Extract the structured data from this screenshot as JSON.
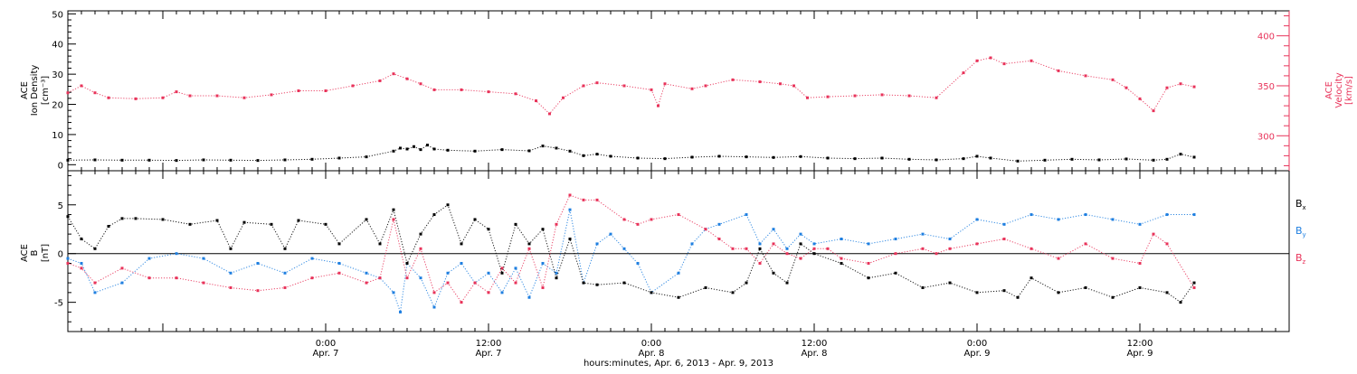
{
  "colors": {
    "axis": "#000000",
    "density": "#000000",
    "velocity": "#e8335a",
    "bx": "#000000",
    "by": "#1f7fe0",
    "bz": "#e8335a"
  },
  "time_axis": {
    "title": "hours:minutes, Apr.  6, 2013 - Apr.  9, 2013",
    "x_unit": "hours since 2013-04-06 00:00",
    "range": [
      5,
      95
    ],
    "ticks": [
      {
        "x": 24,
        "time": "0:00",
        "date": "Apr. 7"
      },
      {
        "x": 36,
        "time": "12:00",
        "date": "Apr. 7"
      },
      {
        "x": 48,
        "time": "0:00",
        "date": "Apr. 8"
      },
      {
        "x": 60,
        "time": "12:00",
        "date": "Apr. 8"
      },
      {
        "x": 72,
        "time": "0:00",
        "date": "Apr. 9"
      },
      {
        "x": 84,
        "time": "12:00",
        "date": "Apr. 9"
      }
    ]
  },
  "chart_data": [
    {
      "type": "scatter",
      "panel": "plasma",
      "left_axis": {
        "label_lines": [
          "ACE",
          "Ion Density",
          "[cm⁻³]"
        ],
        "ylim": [
          -2,
          51
        ],
        "ticks": [
          "0",
          "10",
          "20",
          "30",
          "40",
          "50"
        ]
      },
      "right_axis": {
        "label_lines": [
          "ACE",
          "Velocity",
          "[km/s]"
        ],
        "ylim": [
          265,
          425
        ],
        "ticks": [
          "300",
          "350",
          "400"
        ]
      },
      "series": [
        {
          "axis": "left",
          "x": [
            5,
            7,
            9,
            11,
            13,
            15,
            17,
            19,
            21,
            23,
            25,
            27,
            29,
            29.5,
            30,
            30.5,
            31,
            31.5,
            32,
            33,
            35,
            37,
            39,
            40,
            41,
            42,
            43,
            44,
            45,
            47,
            49,
            51,
            53,
            55,
            57,
            59,
            61,
            63,
            65,
            67,
            69,
            71,
            72,
            73,
            75,
            77,
            79,
            81,
            83,
            85,
            86,
            87,
            88
          ],
          "y": [
            1.5,
            1.6,
            1.5,
            1.5,
            1.4,
            1.6,
            1.5,
            1.4,
            1.6,
            1.8,
            2.2,
            2.6,
            4.5,
            5.5,
            5.2,
            6.0,
            5.0,
            6.5,
            5.2,
            4.8,
            4.5,
            5.0,
            4.6,
            6.2,
            5.5,
            4.5,
            3.0,
            3.5,
            2.8,
            2.2,
            2.0,
            2.5,
            2.8,
            2.6,
            2.4,
            2.7,
            2.2,
            2.0,
            2.2,
            1.8,
            1.6,
            2.0,
            2.8,
            2.2,
            1.2,
            1.5,
            1.8,
            1.6,
            1.9,
            1.5,
            1.8,
            3.5,
            2.5
          ]
        },
        {
          "axis": "right",
          "x": [
            5,
            6,
            7,
            8,
            10,
            12,
            13,
            14,
            16,
            18,
            20,
            22,
            24,
            26,
            28,
            29,
            30,
            31,
            32,
            34,
            36,
            38,
            39.5,
            40.5,
            41.5,
            43,
            44,
            46,
            48,
            48.5,
            49,
            51,
            52,
            54,
            56,
            57.5,
            58.5,
            59.5,
            61,
            63,
            65,
            67,
            69,
            71,
            72,
            73,
            74,
            76,
            78,
            80,
            82,
            83,
            84,
            85,
            86,
            87,
            88
          ],
          "y": [
            343,
            350,
            343,
            338,
            337,
            338,
            344,
            340,
            340,
            338,
            341,
            345,
            345,
            350,
            355,
            362,
            357,
            352,
            346,
            346,
            344,
            342,
            335,
            322,
            338,
            350,
            353,
            350,
            346,
            330,
            352,
            347,
            350,
            356,
            354,
            352,
            350,
            338,
            339,
            340,
            341,
            340,
            338,
            363,
            375,
            378,
            372,
            375,
            365,
            360,
            356,
            348,
            337,
            325,
            348,
            352,
            349
          ]
        }
      ]
    },
    {
      "type": "scatter",
      "panel": "magnetic-field",
      "left_axis": {
        "label_lines": [
          "ACE",
          "B",
          "[nT]"
        ],
        "ylim": [
          -8,
          8.5
        ],
        "ticks": [
          "-5",
          "0",
          "5"
        ]
      },
      "legend": {
        "placement": "right",
        "entries": [
          "Bx",
          "By",
          "Bz"
        ]
      },
      "series": [
        {
          "name": "Bx",
          "x": [
            5,
            6,
            7,
            8,
            9,
            10,
            12,
            14,
            16,
            17,
            18,
            20,
            21,
            22,
            24,
            25,
            27,
            28,
            29,
            30,
            31,
            32,
            33,
            34,
            35,
            36,
            37,
            38,
            39,
            40,
            41,
            42,
            43,
            44,
            46,
            48,
            50,
            52,
            54,
            55,
            56,
            57,
            58,
            59,
            60,
            62,
            64,
            66,
            68,
            70,
            72,
            74,
            75,
            76,
            78,
            80,
            82,
            84,
            86,
            87,
            88
          ],
          "y": [
            3.8,
            1.5,
            0.5,
            2.8,
            3.6,
            3.6,
            3.5,
            3.0,
            3.4,
            0.5,
            3.2,
            3.0,
            0.5,
            3.4,
            3.0,
            1.0,
            3.5,
            1.0,
            4.5,
            -1.0,
            2.0,
            4.0,
            5.0,
            1.0,
            3.5,
            2.5,
            -2.0,
            3.0,
            1.0,
            2.5,
            -2.5,
            1.5,
            -3.0,
            -3.2,
            -3.0,
            -4.0,
            -4.5,
            -3.5,
            -4.0,
            -3.0,
            0.5,
            -2.0,
            -3.0,
            1.0,
            0.0,
            -1.0,
            -2.5,
            -2.0,
            -3.5,
            -3.0,
            -4.0,
            -3.8,
            -4.5,
            -2.5,
            -4.0,
            -3.5,
            -4.5,
            -3.5,
            -4.0,
            -5.0,
            -3.0
          ]
        },
        {
          "name": "By",
          "x": [
            5,
            6,
            7,
            9,
            11,
            13,
            15,
            17,
            19,
            21,
            23,
            25,
            27,
            28,
            29,
            29.5,
            30,
            31,
            32,
            33,
            34,
            35,
            36,
            37,
            38,
            39,
            40,
            41,
            42,
            43,
            44,
            45,
            46,
            47,
            48,
            50,
            51,
            52,
            53,
            55,
            56,
            57,
            58,
            59,
            60,
            62,
            64,
            66,
            68,
            70,
            72,
            74,
            76,
            78,
            80,
            82,
            84,
            86,
            88
          ],
          "y": [
            -0.5,
            -1.0,
            -4.0,
            -3.0,
            -0.5,
            0.0,
            -0.5,
            -2.0,
            -1.0,
            -2.0,
            -0.5,
            -1.0,
            -2.0,
            -2.5,
            -4.0,
            -6.0,
            -1.0,
            -2.5,
            -5.5,
            -2.0,
            -1.0,
            -3.0,
            -2.0,
            -4.0,
            -1.5,
            -4.5,
            -1.0,
            -2.0,
            4.5,
            -3.0,
            1.0,
            2.0,
            0.5,
            -1.0,
            -4.0,
            -2.0,
            1.0,
            2.5,
            3.0,
            4.0,
            1.0,
            2.5,
            0.5,
            2.0,
            1.0,
            1.5,
            1.0,
            1.5,
            2.0,
            1.5,
            3.5,
            3.0,
            4.0,
            3.5,
            4.0,
            3.5,
            3.0,
            4.0,
            4.0
          ]
        },
        {
          "name": "Bz",
          "x": [
            5,
            6,
            7,
            9,
            11,
            13,
            15,
            17,
            19,
            21,
            23,
            25,
            27,
            28,
            29,
            30,
            31,
            32,
            33,
            34,
            35,
            36,
            37,
            38,
            39,
            40,
            41,
            42,
            43,
            44,
            46,
            47,
            48,
            50,
            52,
            53,
            54,
            55,
            56,
            57,
            58,
            59,
            60,
            61,
            62,
            64,
            66,
            68,
            69,
            70,
            72,
            74,
            76,
            78,
            80,
            82,
            84,
            85,
            86,
            88
          ],
          "y": [
            -1.0,
            -1.5,
            -3.0,
            -1.5,
            -2.5,
            -2.5,
            -3.0,
            -3.5,
            -3.8,
            -3.5,
            -2.5,
            -2.0,
            -3.0,
            -2.5,
            3.5,
            -2.5,
            0.5,
            -4.0,
            -3.0,
            -5.0,
            -3.0,
            -4.0,
            -1.5,
            -3.0,
            0.5,
            -3.5,
            3.0,
            6.0,
            5.5,
            5.5,
            3.5,
            3.0,
            3.5,
            4.0,
            2.5,
            1.5,
            0.5,
            0.5,
            -1.0,
            1.0,
            0.0,
            -0.5,
            0.5,
            0.5,
            -0.5,
            -1.0,
            0.0,
            0.5,
            0.0,
            0.5,
            1.0,
            1.5,
            0.5,
            -0.5,
            1.0,
            -0.5,
            -1.0,
            2.0,
            1.0,
            -3.5
          ]
        }
      ],
      "zero_line": 0
    }
  ]
}
